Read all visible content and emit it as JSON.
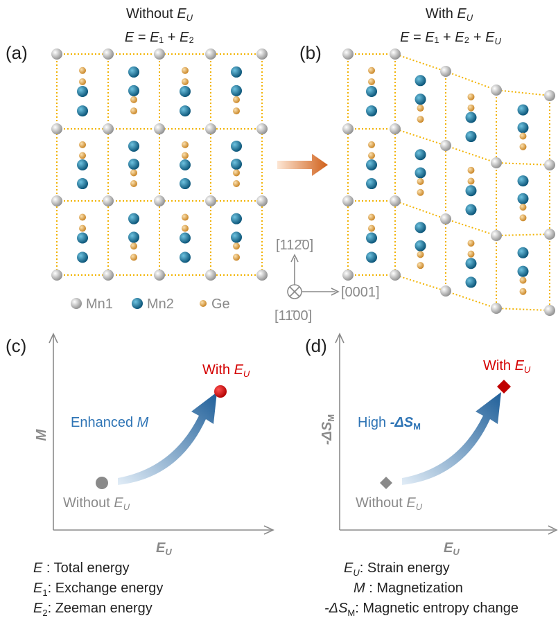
{
  "panel_a": {
    "label": "(a)",
    "title": [
      "Without ",
      "E",
      "U"
    ],
    "equation": [
      "E",
      " = ",
      "E",
      "₁",
      " + ",
      "E",
      "₂"
    ]
  },
  "panel_b": {
    "label": "(b)",
    "title": [
      "With ",
      "E",
      "U"
    ],
    "equation": [
      "E",
      " = ",
      "E",
      "₁",
      " + ",
      "E",
      "₂",
      " + ",
      "E",
      "U"
    ]
  },
  "legend": [
    "Mn1",
    "Mn2",
    "Ge"
  ],
  "directions": [
    "[112̄0]",
    "[0001]",
    "[11̄00]"
  ],
  "panel_c": {
    "label": "(c)",
    "y_axis": "M",
    "x_axis": [
      "E",
      "U"
    ],
    "annotation": [
      "Enhanced ",
      "M"
    ],
    "with": [
      "With ",
      "E",
      "U"
    ],
    "without": [
      "Without ",
      "E",
      "U"
    ]
  },
  "panel_d": {
    "label": "(d)",
    "y_axis": [
      "-ΔS",
      "M"
    ],
    "x_axis": [
      "E",
      "U"
    ],
    "annotation": [
      "High ",
      "-ΔS",
      "M"
    ],
    "with": [
      "With ",
      "E",
      "U"
    ],
    "without": [
      "Without ",
      "E",
      "U"
    ]
  },
  "definitions": [
    {
      "symbol": "E",
      "text": " : Total energy"
    },
    {
      "symbol": "E",
      "sub": "1",
      "text": ": Exchange energy"
    },
    {
      "symbol": "E",
      "sub": "2",
      "text": ": Zeeman energy"
    },
    {
      "symbol": "E",
      "sub": "U",
      "text": ": Strain energy"
    },
    {
      "symbol": "M",
      "text": " : Magnetization"
    },
    {
      "symbol": "-ΔS",
      "sub": "M",
      "text": ": Magnetic entropy change"
    }
  ]
}
